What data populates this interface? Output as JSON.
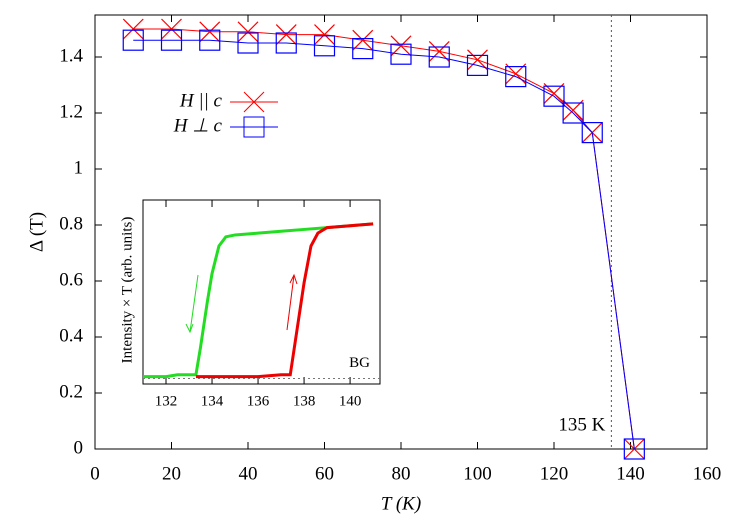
{
  "chart_data": [
    {
      "type": "line",
      "xlabel": "T (K)",
      "ylabel": "Δ (T)",
      "xlim": [
        0,
        160
      ],
      "xticks": [
        0,
        20,
        40,
        60,
        80,
        100,
        120,
        140,
        160
      ],
      "ylim": [
        0,
        1.55
      ],
      "yticks": [
        0,
        0.2,
        0.4,
        0.6,
        0.8,
        1,
        1.2,
        1.4
      ],
      "series": [
        {
          "name": "H || c",
          "color": "#ff0000",
          "marker": "x",
          "x": [
            10,
            20,
            30,
            40,
            50,
            60,
            70,
            80,
            90,
            100,
            110,
            120,
            125,
            130,
            141
          ],
          "values": [
            1.5,
            1.5,
            1.49,
            1.49,
            1.48,
            1.48,
            1.46,
            1.44,
            1.42,
            1.39,
            1.34,
            1.27,
            1.21,
            1.13,
            0
          ]
        },
        {
          "name": "H ⊥ c",
          "color": "#0000ff",
          "marker": "square",
          "x": [
            10,
            20,
            30,
            40,
            50,
            60,
            70,
            80,
            90,
            100,
            110,
            120,
            125,
            130,
            141
          ],
          "values": [
            1.46,
            1.46,
            1.46,
            1.45,
            1.45,
            1.44,
            1.43,
            1.41,
            1.4,
            1.37,
            1.33,
            1.26,
            1.2,
            1.13,
            0
          ]
        }
      ],
      "vline": 135,
      "annotation": "135 K"
    },
    {
      "type": "line",
      "ylabel": "Intensity × T (arb. units)",
      "xlim": [
        131,
        141.3
      ],
      "xticks": [
        132,
        134,
        136,
        138,
        140
      ],
      "ylim": [
        0,
        1
      ],
      "series": [
        {
          "color": "#22dd22",
          "x": [
            131,
            131.5,
            132,
            132.5,
            133,
            133.3,
            133.5,
            133.8,
            134,
            134.3,
            134.6,
            135,
            136,
            137,
            138,
            139,
            140,
            141
          ],
          "values": [
            0.04,
            0.04,
            0.04,
            0.05,
            0.05,
            0.05,
            0.2,
            0.45,
            0.6,
            0.75,
            0.8,
            0.81,
            0.82,
            0.83,
            0.84,
            0.85,
            0.86,
            0.87
          ]
        },
        {
          "color": "#ee0000",
          "x": [
            133.3,
            134,
            135,
            136,
            137,
            137.4,
            137.7,
            138,
            138.3,
            138.6,
            139,
            140,
            141
          ],
          "values": [
            0.04,
            0.04,
            0.04,
            0.04,
            0.05,
            0.05,
            0.3,
            0.55,
            0.75,
            0.82,
            0.85,
            0.86,
            0.87
          ]
        }
      ],
      "hline": 0.03,
      "annotation": "BG"
    }
  ]
}
